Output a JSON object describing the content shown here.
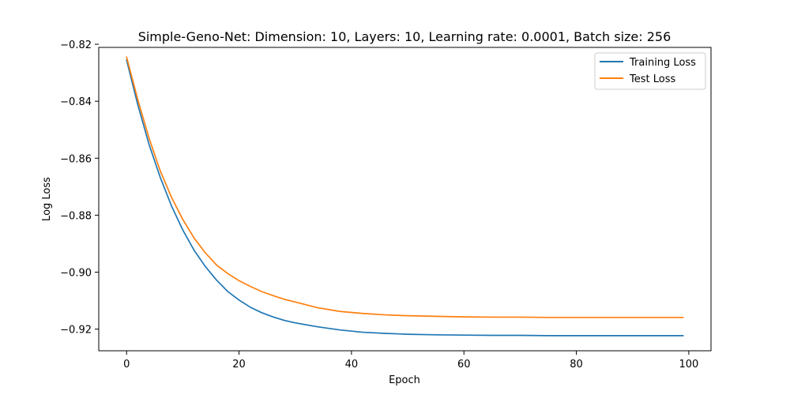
{
  "chart_data": {
    "type": "line",
    "title": "Simple-Geno-Net: Dimension: 10, Layers: 10, Learning rate: 0.0001, Batch size: 256",
    "xlabel": "Epoch",
    "ylabel": "Log Loss",
    "xlim": [
      -4.95,
      103.95
    ],
    "ylim": [
      -0.9276,
      -0.8211
    ],
    "x_ticks": [
      0,
      20,
      40,
      60,
      80,
      100
    ],
    "y_ticks": [
      -0.82,
      -0.84,
      -0.86,
      -0.88,
      -0.9,
      -0.92
    ],
    "x_tick_labels": [
      "0",
      "20",
      "40",
      "60",
      "80",
      "100"
    ],
    "y_tick_labels": [
      "−0.82",
      "−0.84",
      "−0.86",
      "−0.88",
      "−0.90",
      "−0.92"
    ],
    "grid": false,
    "legend_position": "top-right",
    "series": [
      {
        "name": "Training Loss",
        "color": "#1f77b4",
        "x": [
          0,
          2,
          4,
          6,
          8,
          10,
          12,
          14,
          16,
          18,
          20,
          22,
          24,
          26,
          28,
          30,
          34,
          38,
          42,
          46,
          50,
          55,
          60,
          65,
          70,
          75,
          80,
          85,
          90,
          95,
          99
        ],
        "values": [
          -0.8255,
          -0.8413,
          -0.8552,
          -0.8668,
          -0.8768,
          -0.8852,
          -0.8923,
          -0.898,
          -0.9028,
          -0.9068,
          -0.9098,
          -0.9123,
          -0.9142,
          -0.9157,
          -0.9169,
          -0.9178,
          -0.9192,
          -0.9203,
          -0.9211,
          -0.9215,
          -0.9218,
          -0.922,
          -0.9221,
          -0.9222,
          -0.9222,
          -0.9223,
          -0.9223,
          -0.9223,
          -0.9223,
          -0.9223,
          -0.9223
        ]
      },
      {
        "name": "Test Loss",
        "color": "#ff7f0e",
        "x": [
          0,
          2,
          4,
          6,
          8,
          10,
          12,
          14,
          16,
          18,
          20,
          22,
          24,
          26,
          28,
          30,
          34,
          38,
          42,
          46,
          50,
          55,
          60,
          65,
          70,
          75,
          80,
          85,
          90,
          95,
          99
        ],
        "values": [
          -0.8245,
          -0.8395,
          -0.853,
          -0.8645,
          -0.8738,
          -0.8815,
          -0.888,
          -0.8932,
          -0.8975,
          -0.9005,
          -0.903,
          -0.905,
          -0.9068,
          -0.9082,
          -0.9095,
          -0.9105,
          -0.9125,
          -0.9138,
          -0.9145,
          -0.915,
          -0.9153,
          -0.9155,
          -0.9157,
          -0.9158,
          -0.9158,
          -0.9159,
          -0.9159,
          -0.9159,
          -0.9159,
          -0.9159,
          -0.9159
        ]
      }
    ]
  }
}
